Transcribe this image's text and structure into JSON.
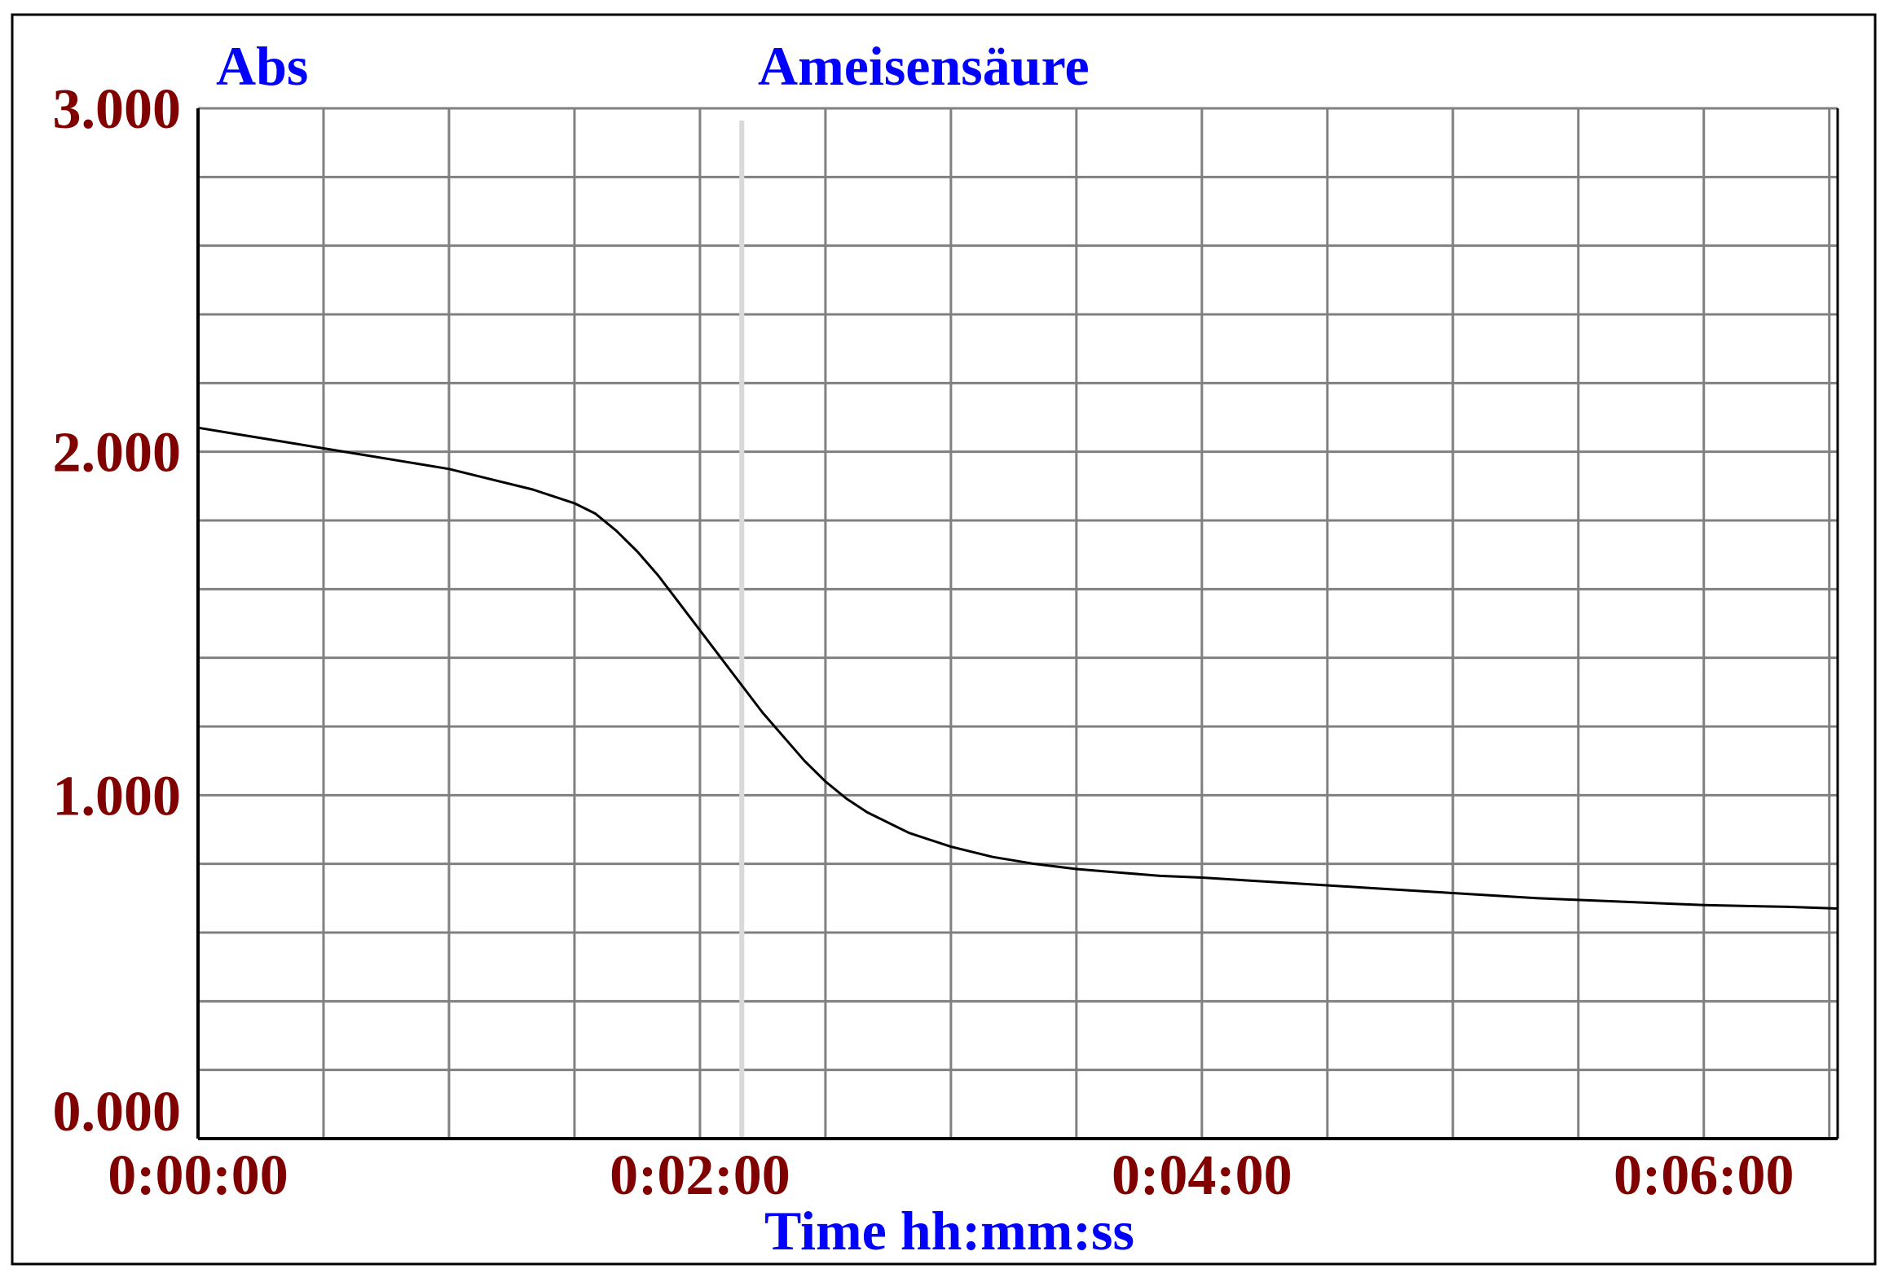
{
  "chart_data": {
    "type": "line",
    "title": "Ameisensäure",
    "ylabel": "Abs",
    "xlabel": "Time hh:mm:ss",
    "x_unit": "seconds",
    "xlim": [
      0,
      392
    ],
    "ylim": [
      0,
      3
    ],
    "grid": true,
    "y_ticks": [
      {
        "value": 3,
        "label": "3.000"
      },
      {
        "value": 2,
        "label": "2.000"
      },
      {
        "value": 1,
        "label": "1.000"
      },
      {
        "value": 0,
        "label": "0.000"
      }
    ],
    "x_ticks": [
      {
        "value": 0,
        "label": "0:00:00"
      },
      {
        "value": 120,
        "label": "0:02:00"
      },
      {
        "value": 240,
        "label": "0:04:00"
      },
      {
        "value": 360,
        "label": "0:06:00"
      }
    ],
    "x_grid_step": 30,
    "y_grid_step": 0.2,
    "cursor_x": 130,
    "colors": {
      "series": "#000000",
      "grid": "#808080",
      "cursor": "#d9d9d9",
      "title": "#0000ff",
      "tick": "#800000"
    },
    "series": [
      {
        "x": [
          0,
          10,
          20,
          30,
          40,
          50,
          60,
          70,
          80,
          90,
          95,
          100,
          105,
          110,
          115,
          120,
          125,
          130,
          135,
          140,
          145,
          150,
          155,
          160,
          170,
          180,
          190,
          200,
          210,
          220,
          230,
          240,
          260,
          280,
          300,
          320,
          340,
          360,
          380,
          392
        ],
        "y": [
          2.07,
          2.05,
          2.03,
          2.01,
          1.99,
          1.97,
          1.95,
          1.92,
          1.89,
          1.85,
          1.82,
          1.77,
          1.71,
          1.64,
          1.56,
          1.48,
          1.4,
          1.32,
          1.24,
          1.17,
          1.1,
          1.04,
          0.99,
          0.95,
          0.89,
          0.85,
          0.82,
          0.8,
          0.785,
          0.775,
          0.765,
          0.76,
          0.745,
          0.73,
          0.715,
          0.7,
          0.69,
          0.68,
          0.675,
          0.67
        ]
      }
    ]
  }
}
